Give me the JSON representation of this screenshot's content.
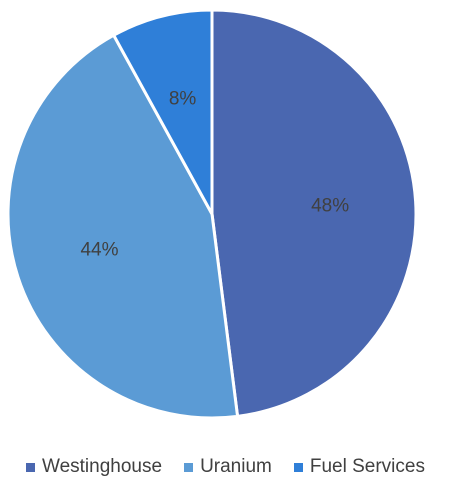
{
  "chart_data": {
    "type": "pie",
    "categories": [
      "Westinghouse",
      "Uranium",
      "Fuel Services"
    ],
    "values": [
      48,
      44,
      8
    ],
    "labels": [
      "48%",
      "44%",
      "8%"
    ],
    "colors": [
      "#4a67b0",
      "#5b9bd5",
      "#2f7fd8"
    ],
    "title": "",
    "legend_position": "bottom"
  }
}
